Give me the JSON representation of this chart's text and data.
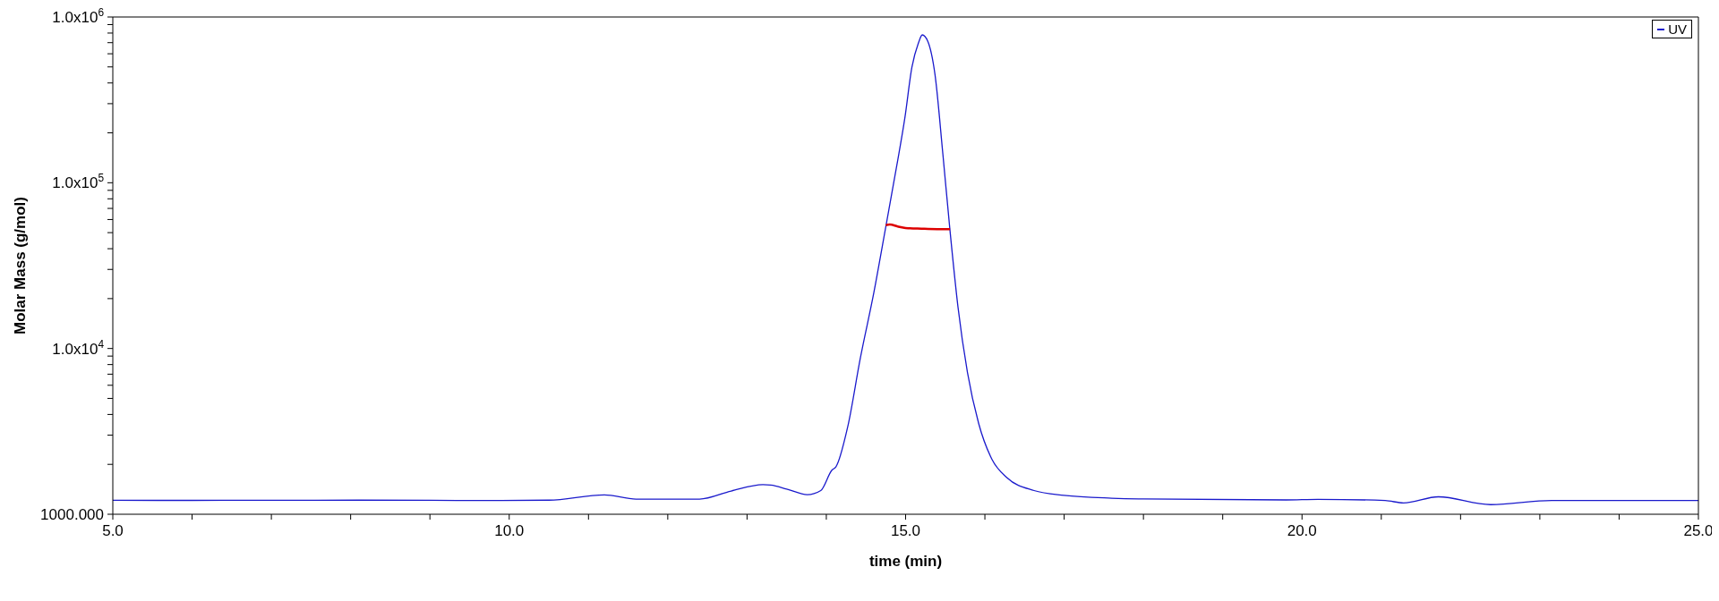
{
  "chart_data": {
    "type": "line",
    "xlabel": "time (min)",
    "ylabel": "Molar Mass (g/mol)",
    "log": "y",
    "legend": "top right",
    "xlim": [
      5,
      25
    ],
    "xticks": [
      {
        "value": 5,
        "label": "5.0"
      },
      {
        "value": 6,
        "label": null
      },
      {
        "value": 7,
        "label": null
      },
      {
        "value": 8,
        "label": null
      },
      {
        "value": 9,
        "label": null
      },
      {
        "value": 10,
        "label": "10.0"
      },
      {
        "value": 11,
        "label": null
      },
      {
        "value": 12,
        "label": null
      },
      {
        "value": 13,
        "label": null
      },
      {
        "value": 14,
        "label": null
      },
      {
        "value": 15,
        "label": "15.0"
      },
      {
        "value": 16,
        "label": null
      },
      {
        "value": 17,
        "label": null
      },
      {
        "value": 18,
        "label": null
      },
      {
        "value": 19,
        "label": null
      },
      {
        "value": 20,
        "label": "20.0"
      },
      {
        "value": 21,
        "label": null
      },
      {
        "value": 22,
        "label": null
      },
      {
        "value": 23,
        "label": null
      },
      {
        "value": 24,
        "label": null
      },
      {
        "value": 25,
        "label": "25.0"
      }
    ],
    "ylim": [
      1000,
      1000000
    ],
    "yticks": [
      {
        "value": 1000,
        "label": "1000.000"
      },
      {
        "value": 2000,
        "label": null
      },
      {
        "value": 3000,
        "label": null
      },
      {
        "value": 4000,
        "label": null
      },
      {
        "value": 5000,
        "label": null
      },
      {
        "value": 6000,
        "label": null
      },
      {
        "value": 7000,
        "label": null
      },
      {
        "value": 8000,
        "label": null
      },
      {
        "value": 9000,
        "label": null
      },
      {
        "value": 10000,
        "label": "1.0x10$^{4}$"
      },
      {
        "value": 20000,
        "label": null
      },
      {
        "value": 30000,
        "label": null
      },
      {
        "value": 40000,
        "label": null
      },
      {
        "value": 50000,
        "label": null
      },
      {
        "value": 60000,
        "label": null
      },
      {
        "value": 70000,
        "label": null
      },
      {
        "value": 80000,
        "label": null
      },
      {
        "value": 90000,
        "label": null
      },
      {
        "value": 100000,
        "label": "1.0x10$^{5}$"
      },
      {
        "value": 200000,
        "label": null
      },
      {
        "value": 300000,
        "label": null
      },
      {
        "value": 400000,
        "label": null
      },
      {
        "value": 500000,
        "label": null
      },
      {
        "value": 600000,
        "label": null
      },
      {
        "value": 700000,
        "label": null
      },
      {
        "value": 800000,
        "label": null
      },
      {
        "value": 900000,
        "label": null
      },
      {
        "value": 1000000,
        "label": "1.0x10$^{6}$"
      }
    ],
    "series": [
      {
        "name": "UV",
        "color": "#1a1acc",
        "x": [
          5,
          6,
          7,
          8.1,
          9.9,
          10.5,
          11.2,
          11.6,
          12.4,
          12.8,
          13.2,
          13.3,
          13.5,
          13.76,
          13.93,
          14.07,
          14.12,
          14.27,
          14.43,
          14.6,
          14.75,
          14.89,
          14.99,
          15.08,
          15.16,
          15.21,
          15.28,
          15.37,
          15.47,
          15.56,
          15.66,
          15.78,
          15.92,
          16.09,
          16.28,
          16.62,
          17,
          17.6,
          18,
          19.8,
          20.2,
          21.05,
          21.28,
          21.72,
          22.38,
          23.15,
          24,
          25
        ],
        "values": [
          1215,
          1212,
          1215,
          1216,
          1210,
          1216,
          1309,
          1233,
          1233,
          1381,
          1510,
          1500,
          1420,
          1313,
          1390,
          1845,
          1930,
          3370,
          8800,
          21800,
          54200,
          128000,
          245000,
          499000,
          693000,
          780000,
          713000,
          452000,
          149000,
          51400,
          17900,
          7180,
          3550,
          2140,
          1660,
          1390,
          1300,
          1250,
          1236,
          1220,
          1230,
          1210,
          1170,
          1274,
          1143,
          1210,
          1210,
          1210
        ]
      },
      {
        "color": "#dd0000",
        "x": [
          14.75,
          14.8,
          14.9,
          15.0,
          15.2,
          15.4,
          15.56
        ],
        "values": [
          55500,
          56000,
          54500,
          53300,
          52800,
          52500,
          52500
        ]
      }
    ]
  }
}
